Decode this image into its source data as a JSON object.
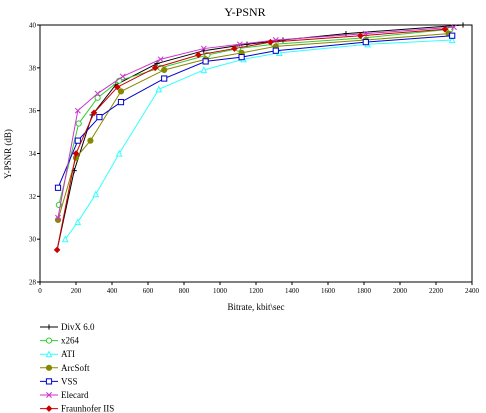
{
  "chart_data": {
    "type": "line",
    "title": "Y-PSNR",
    "xlabel": "Bitrate, kbit\\sec",
    "ylabel": "Y-PSNR (dB)",
    "xlim": [
      0,
      2400
    ],
    "ylim": [
      28,
      40
    ],
    "xticks": [
      0,
      200,
      400,
      600,
      800,
      1000,
      1200,
      1400,
      1600,
      1800,
      2000,
      2200,
      2400
    ],
    "yticks": [
      28,
      30,
      32,
      34,
      36,
      38,
      40
    ],
    "grid": false,
    "legend_position": "bottom-left",
    "series": [
      {
        "name": "DivX 6.0",
        "color": "#000000",
        "marker": "plus",
        "x": [
          95,
          190,
          290,
          420,
          650,
          910,
          1150,
          1350,
          1700,
          2350
        ],
        "y": [
          29.5,
          33.2,
          35.8,
          37.2,
          38.2,
          38.8,
          39.1,
          39.3,
          39.6,
          40.0
        ]
      },
      {
        "name": "x264",
        "color": "#33cc33",
        "marker": "circle",
        "x": [
          105,
          215,
          320,
          440,
          670,
          930,
          1100,
          1300,
          1800,
          2280
        ],
        "y": [
          31.6,
          35.4,
          36.6,
          37.4,
          38.0,
          38.6,
          38.9,
          39.1,
          39.4,
          39.8
        ]
      },
      {
        "name": "ATI",
        "color": "#33ffff",
        "marker": "triangle",
        "x": [
          140,
          210,
          310,
          440,
          660,
          910,
          1130,
          1330,
          1820,
          2290
        ],
        "y": [
          30.0,
          30.8,
          32.1,
          34.0,
          37.0,
          37.9,
          38.4,
          38.7,
          39.1,
          39.3
        ]
      },
      {
        "name": "ArcSoft",
        "color": "#888800",
        "marker": "circle-filled",
        "x": [
          100,
          200,
          280,
          450,
          690,
          920,
          1120,
          1310,
          1810,
          2270
        ],
        "y": [
          30.9,
          33.8,
          34.6,
          36.9,
          37.9,
          38.4,
          38.7,
          39.0,
          39.3,
          39.6
        ]
      },
      {
        "name": "VSS",
        "color": "#0000cc",
        "marker": "square",
        "x": [
          100,
          210,
          330,
          450,
          690,
          920,
          1120,
          1310,
          1810,
          2290
        ],
        "y": [
          32.4,
          34.6,
          35.7,
          36.4,
          37.5,
          38.3,
          38.5,
          38.8,
          39.2,
          39.5
        ]
      },
      {
        "name": "Elecard",
        "color": "#cc33cc",
        "marker": "x",
        "x": [
          100,
          210,
          320,
          460,
          670,
          910,
          1110,
          1310,
          1810,
          2300
        ],
        "y": [
          31.0,
          36.0,
          36.8,
          37.6,
          38.4,
          38.9,
          39.1,
          39.3,
          39.6,
          39.9
        ]
      },
      {
        "name": "Fraunhofer IIS",
        "color": "#cc0000",
        "marker": "diamond",
        "x": [
          95,
          200,
          300,
          430,
          640,
          880,
          1080,
          1280,
          1780,
          2250
        ],
        "y": [
          29.5,
          34.0,
          35.9,
          37.1,
          38.0,
          38.6,
          38.9,
          39.2,
          39.5,
          39.8
        ]
      }
    ]
  }
}
